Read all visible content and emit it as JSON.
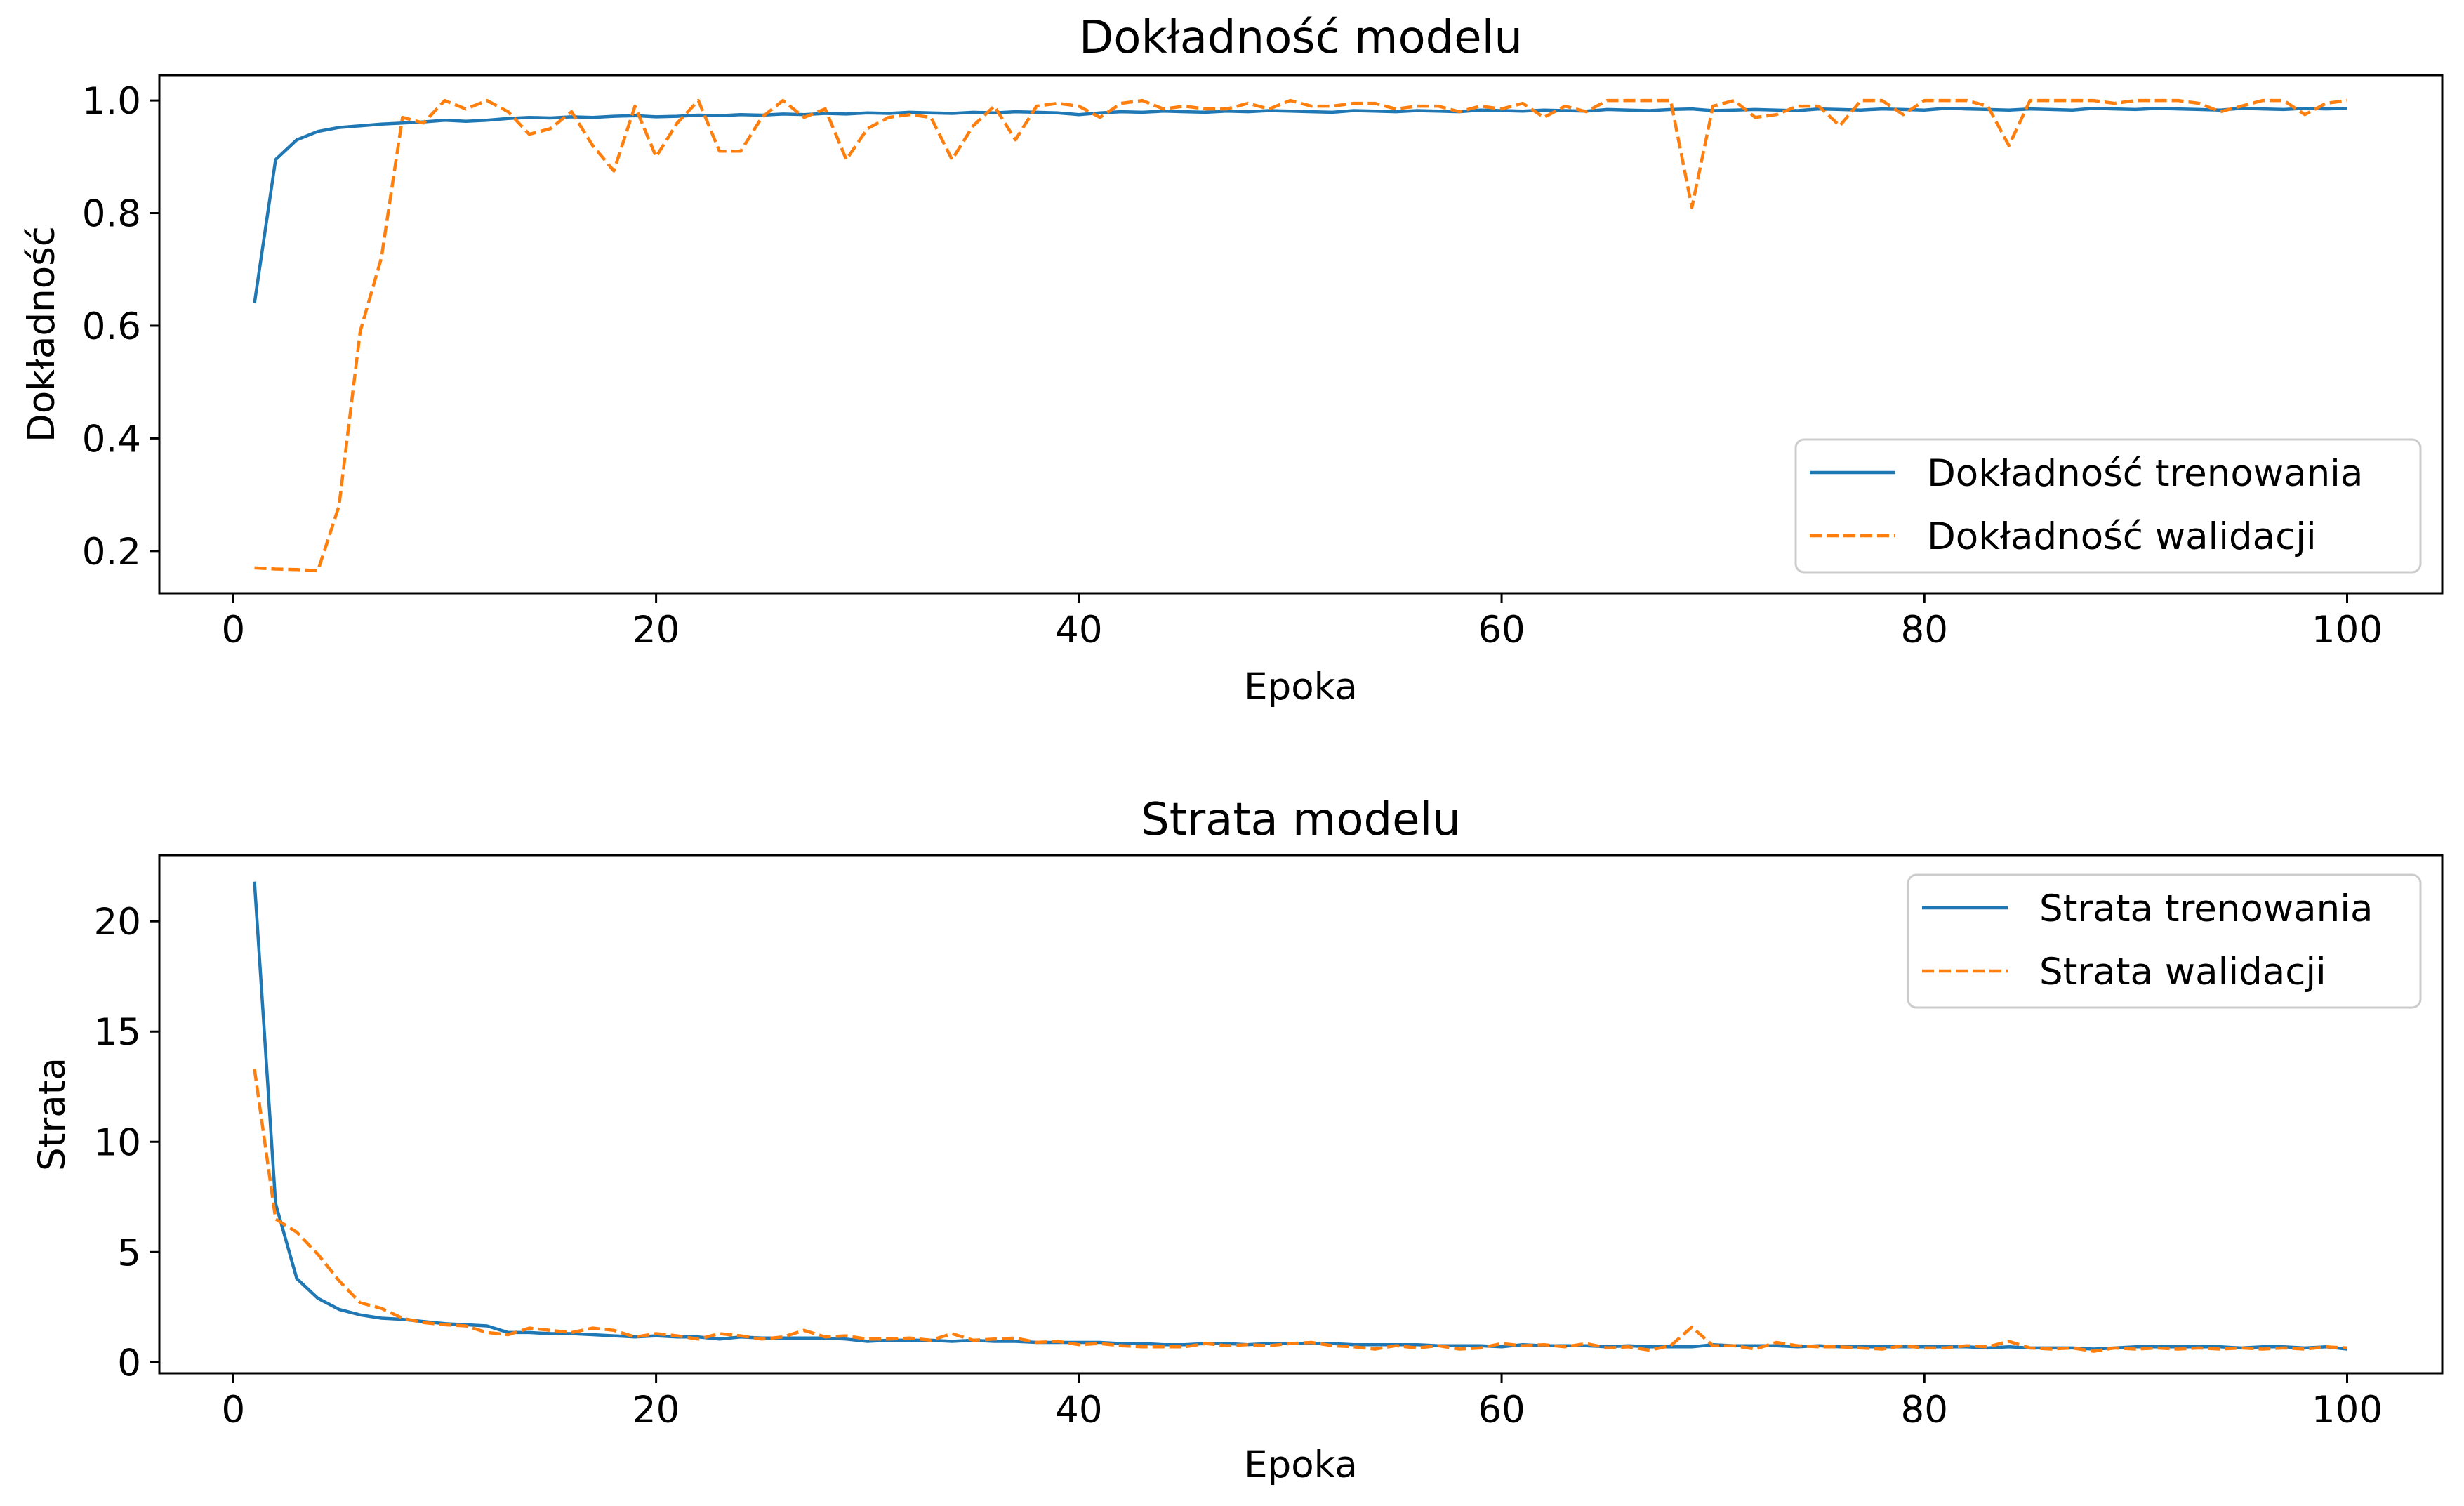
{
  "chart_data": [
    {
      "type": "line",
      "title": "Dokładność modelu",
      "xlabel": "Epoka",
      "ylabel": "Dokładność",
      "xlim": [
        -3.5,
        104.5
      ],
      "ylim": [
        0.125,
        1.045
      ],
      "xticks": [
        0,
        20,
        40,
        60,
        80,
        100
      ],
      "xtick_labels": [
        "0",
        "20",
        "40",
        "60",
        "80",
        "100"
      ],
      "yticks": [
        0.2,
        0.4,
        0.6,
        0.8,
        1.0
      ],
      "ytick_labels": [
        "0.2",
        "0.4",
        "0.6",
        "0.8",
        "1.0"
      ],
      "legend_position": "lower-right",
      "grid": false,
      "x": [
        1,
        2,
        3,
        4,
        5,
        6,
        7,
        8,
        9,
        10,
        11,
        12,
        13,
        14,
        15,
        16,
        17,
        18,
        19,
        20,
        21,
        22,
        23,
        24,
        25,
        26,
        27,
        28,
        29,
        30,
        31,
        32,
        33,
        34,
        35,
        36,
        37,
        38,
        39,
        40,
        41,
        42,
        43,
        44,
        45,
        46,
        47,
        48,
        49,
        50,
        51,
        52,
        53,
        54,
        55,
        56,
        57,
        58,
        59,
        60,
        61,
        62,
        63,
        64,
        65,
        66,
        67,
        68,
        69,
        70,
        71,
        72,
        73,
        74,
        75,
        76,
        77,
        78,
        79,
        80,
        81,
        82,
        83,
        84,
        85,
        86,
        87,
        88,
        89,
        90,
        91,
        92,
        93,
        94,
        95,
        96,
        97,
        98,
        99,
        100
      ],
      "series": [
        {
          "name": "Dokładność trenowania",
          "color": "#1f77b4",
          "dash": "solid",
          "values": [
            0.64,
            0.895,
            0.93,
            0.945,
            0.952,
            0.955,
            0.958,
            0.96,
            0.962,
            0.965,
            0.963,
            0.965,
            0.968,
            0.97,
            0.969,
            0.971,
            0.97,
            0.972,
            0.973,
            0.971,
            0.972,
            0.974,
            0.973,
            0.975,
            0.974,
            0.976,
            0.975,
            0.977,
            0.976,
            0.978,
            0.977,
            0.979,
            0.978,
            0.977,
            0.979,
            0.978,
            0.98,
            0.979,
            0.978,
            0.975,
            0.978,
            0.98,
            0.979,
            0.981,
            0.98,
            0.979,
            0.981,
            0.98,
            0.982,
            0.981,
            0.98,
            0.979,
            0.982,
            0.981,
            0.98,
            0.982,
            0.981,
            0.98,
            0.983,
            0.982,
            0.981,
            0.983,
            0.982,
            0.981,
            0.984,
            0.983,
            0.982,
            0.984,
            0.985,
            0.982,
            0.983,
            0.984,
            0.983,
            0.982,
            0.985,
            0.984,
            0.983,
            0.985,
            0.984,
            0.983,
            0.986,
            0.985,
            0.984,
            0.983,
            0.985,
            0.984,
            0.983,
            0.986,
            0.985,
            0.984,
            0.986,
            0.985,
            0.984,
            0.983,
            0.986,
            0.985,
            0.984,
            0.986,
            0.985,
            0.986
          ]
        },
        {
          "name": "Dokładność walidacji",
          "color": "#ff7f0e",
          "dash": "dashed",
          "values": [
            0.17,
            0.168,
            0.167,
            0.165,
            0.28,
            0.59,
            0.72,
            0.97,
            0.96,
            1.0,
            0.985,
            1.0,
            0.98,
            0.94,
            0.95,
            0.98,
            0.92,
            0.875,
            0.99,
            0.9,
            0.96,
            1.0,
            0.91,
            0.91,
            0.97,
            1.0,
            0.97,
            0.985,
            0.895,
            0.95,
            0.97,
            0.975,
            0.97,
            0.895,
            0.955,
            0.99,
            0.93,
            0.99,
            0.995,
            0.99,
            0.97,
            0.995,
            1.0,
            0.985,
            0.99,
            0.985,
            0.985,
            0.995,
            0.985,
            1.0,
            0.99,
            0.99,
            0.995,
            0.995,
            0.985,
            0.99,
            0.99,
            0.98,
            0.99,
            0.985,
            0.995,
            0.97,
            0.99,
            0.98,
            1.0,
            1.0,
            1.0,
            1.0,
            0.81,
            0.99,
            1.0,
            0.97,
            0.975,
            0.99,
            0.99,
            0.955,
            1.0,
            1.0,
            0.975,
            1.0,
            1.0,
            1.0,
            0.99,
            0.92,
            1.0,
            1.0,
            1.0,
            1.0,
            0.995,
            1.0,
            1.0,
            1.0,
            0.995,
            0.98,
            0.99,
            1.0,
            1.0,
            0.975,
            0.995,
            1.0
          ]
        }
      ]
    },
    {
      "type": "line",
      "title": "Strata modelu",
      "xlabel": "Epoka",
      "ylabel": "Strata",
      "xlim": [
        -3.5,
        104.5
      ],
      "ylim": [
        -0.5,
        23.0
      ],
      "xticks": [
        0,
        20,
        40,
        60,
        80,
        100
      ],
      "xtick_labels": [
        "0",
        "20",
        "40",
        "60",
        "80",
        "100"
      ],
      "yticks": [
        0,
        5,
        10,
        15,
        20
      ],
      "ytick_labels": [
        "0",
        "5",
        "10",
        "15",
        "20"
      ],
      "legend_position": "upper-right",
      "grid": false,
      "x": [
        1,
        2,
        3,
        4,
        5,
        6,
        7,
        8,
        9,
        10,
        11,
        12,
        13,
        14,
        15,
        16,
        17,
        18,
        19,
        20,
        21,
        22,
        23,
        24,
        25,
        26,
        27,
        28,
        29,
        30,
        31,
        32,
        33,
        34,
        35,
        36,
        37,
        38,
        39,
        40,
        41,
        42,
        43,
        44,
        45,
        46,
        47,
        48,
        49,
        50,
        51,
        52,
        53,
        54,
        55,
        56,
        57,
        58,
        59,
        60,
        61,
        62,
        63,
        64,
        65,
        66,
        67,
        68,
        69,
        70,
        71,
        72,
        73,
        74,
        75,
        76,
        77,
        78,
        79,
        80,
        81,
        82,
        83,
        84,
        85,
        86,
        87,
        88,
        89,
        90,
        91,
        92,
        93,
        94,
        95,
        96,
        97,
        98,
        99,
        100
      ],
      "series": [
        {
          "name": "Strata trenowania",
          "color": "#1f77b4",
          "dash": "solid",
          "values": [
            21.8,
            7.2,
            3.8,
            2.9,
            2.4,
            2.15,
            2.0,
            1.95,
            1.85,
            1.75,
            1.7,
            1.65,
            1.35,
            1.35,
            1.3,
            1.3,
            1.25,
            1.2,
            1.15,
            1.2,
            1.15,
            1.15,
            1.05,
            1.15,
            1.1,
            1.1,
            1.1,
            1.1,
            1.05,
            0.95,
            1.0,
            1.0,
            1.0,
            0.95,
            1.0,
            0.95,
            0.95,
            0.9,
            0.9,
            0.9,
            0.9,
            0.85,
            0.85,
            0.8,
            0.8,
            0.85,
            0.85,
            0.8,
            0.85,
            0.85,
            0.85,
            0.85,
            0.8,
            0.8,
            0.8,
            0.8,
            0.75,
            0.75,
            0.75,
            0.7,
            0.8,
            0.75,
            0.75,
            0.75,
            0.7,
            0.75,
            0.7,
            0.7,
            0.7,
            0.8,
            0.75,
            0.75,
            0.75,
            0.7,
            0.75,
            0.7,
            0.7,
            0.7,
            0.7,
            0.7,
            0.7,
            0.7,
            0.65,
            0.7,
            0.65,
            0.65,
            0.65,
            0.6,
            0.65,
            0.7,
            0.7,
            0.7,
            0.7,
            0.7,
            0.65,
            0.7,
            0.7,
            0.65,
            0.7,
            0.6
          ]
        },
        {
          "name": "Strata walidacji",
          "color": "#ff7f0e",
          "dash": "dashed",
          "values": [
            13.3,
            6.5,
            5.9,
            4.9,
            3.7,
            2.7,
            2.45,
            2.0,
            1.8,
            1.7,
            1.65,
            1.35,
            1.25,
            1.55,
            1.45,
            1.35,
            1.55,
            1.45,
            1.15,
            1.3,
            1.2,
            1.05,
            1.3,
            1.2,
            1.05,
            1.15,
            1.45,
            1.15,
            1.2,
            1.05,
            1.05,
            1.1,
            1.0,
            1.3,
            1.0,
            1.05,
            1.1,
            0.9,
            0.95,
            0.8,
            0.85,
            0.75,
            0.7,
            0.7,
            0.7,
            0.85,
            0.75,
            0.8,
            0.75,
            0.85,
            0.9,
            0.75,
            0.7,
            0.6,
            0.75,
            0.65,
            0.75,
            0.6,
            0.65,
            0.85,
            0.75,
            0.8,
            0.7,
            0.85,
            0.65,
            0.7,
            0.55,
            0.75,
            1.6,
            0.75,
            0.75,
            0.6,
            0.9,
            0.75,
            0.7,
            0.7,
            0.65,
            0.6,
            0.75,
            0.65,
            0.65,
            0.75,
            0.7,
            0.95,
            0.65,
            0.6,
            0.65,
            0.5,
            0.65,
            0.6,
            0.65,
            0.6,
            0.65,
            0.6,
            0.65,
            0.6,
            0.65,
            0.6,
            0.7,
            0.65
          ]
        }
      ]
    }
  ]
}
